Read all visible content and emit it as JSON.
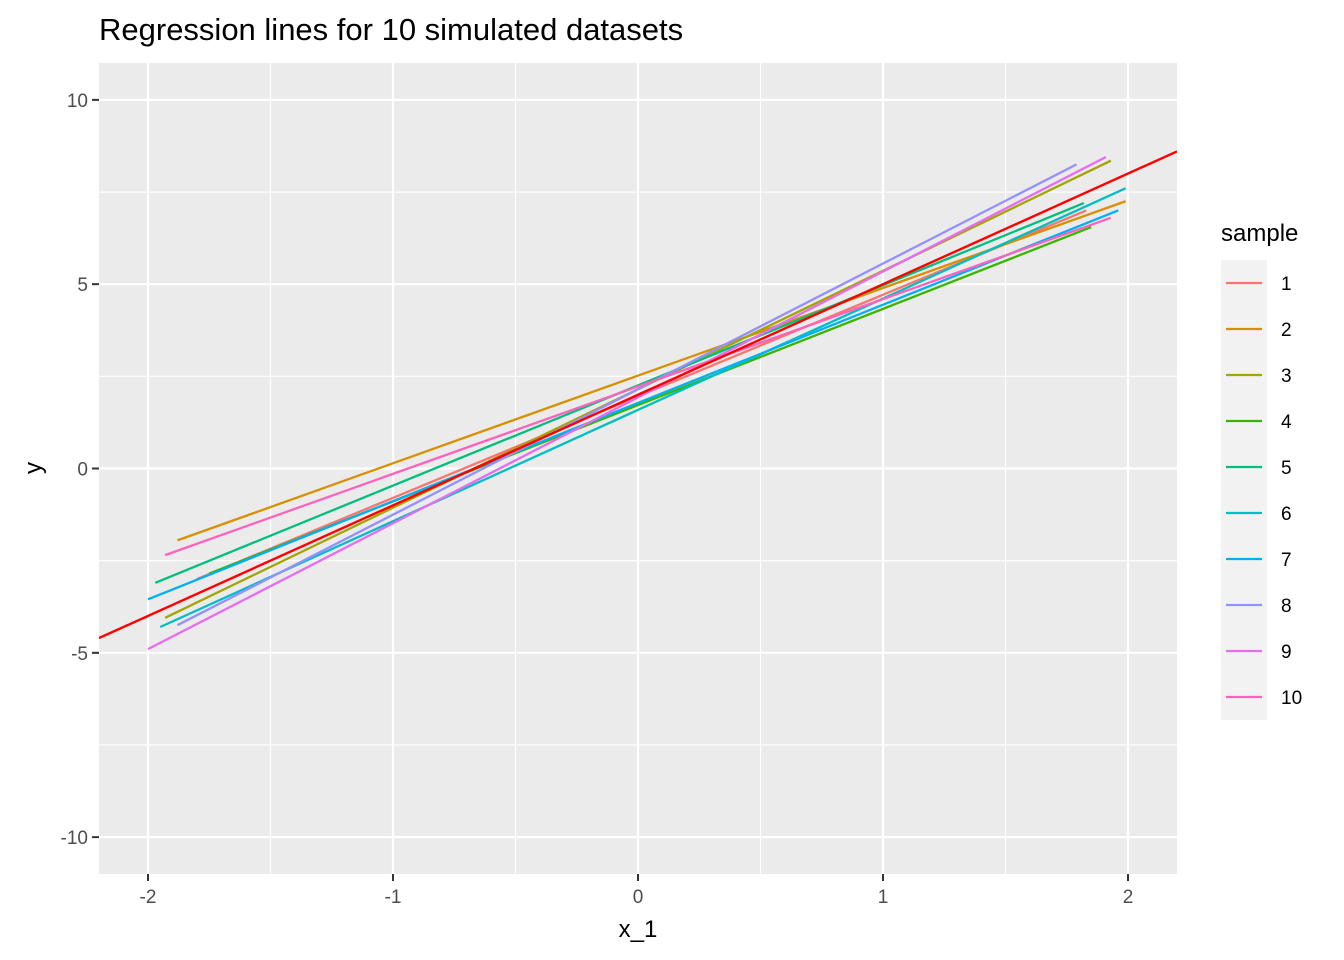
{
  "chart_data": {
    "type": "line",
    "title": "Regression lines for 10 simulated datasets",
    "xlabel": "x_1",
    "ylabel": "y",
    "xlim": [
      -2.2,
      2.2
    ],
    "ylim": [
      -11,
      11
    ],
    "x_ticks": [
      -2,
      -1,
      0,
      1,
      2
    ],
    "x_tick_labels": [
      "-2",
      "-1",
      "0",
      "1",
      "2"
    ],
    "y_ticks": [
      -10,
      -5,
      0,
      5,
      10
    ],
    "y_tick_labels": [
      "-10",
      "-5",
      "0",
      "5",
      "10"
    ],
    "grid": true,
    "background": "#ebebeb",
    "legend": {
      "title": "sample",
      "position": "right"
    },
    "true_line": {
      "color": "#ff0000",
      "x": [
        -2.2,
        2.2
      ],
      "y": [
        -4.6,
        8.6
      ]
    },
    "series": [
      {
        "name": "1",
        "color": "#f8766d",
        "x": [
          -1.8,
          1.83
        ],
        "y": [
          -3.0,
          7.0
        ]
      },
      {
        "name": "2",
        "color": "#d89000",
        "x": [
          -1.88,
          1.99
        ],
        "y": [
          -1.95,
          7.25
        ]
      },
      {
        "name": "3",
        "color": "#a3a500",
        "x": [
          -1.93,
          1.93
        ],
        "y": [
          -4.05,
          8.35
        ]
      },
      {
        "name": "4",
        "color": "#39b600",
        "x": [
          -1.75,
          1.85
        ],
        "y": [
          -2.85,
          6.55
        ]
      },
      {
        "name": "5",
        "color": "#00bf7d",
        "x": [
          -1.97,
          1.82
        ],
        "y": [
          -3.1,
          7.2
        ]
      },
      {
        "name": "6",
        "color": "#00bfc4",
        "x": [
          -1.95,
          1.99
        ],
        "y": [
          -4.3,
          7.6
        ]
      },
      {
        "name": "7",
        "color": "#00b0f6",
        "x": [
          -2.0,
          1.96
        ],
        "y": [
          -3.55,
          7.0
        ]
      },
      {
        "name": "8",
        "color": "#9590ff",
        "x": [
          -1.88,
          1.79
        ],
        "y": [
          -4.25,
          8.25
        ]
      },
      {
        "name": "9",
        "color": "#e76bf3",
        "x": [
          -2.0,
          1.91
        ],
        "y": [
          -4.9,
          8.45
        ]
      },
      {
        "name": "10",
        "color": "#ff62bc",
        "x": [
          -1.93,
          1.93
        ],
        "y": [
          -2.35,
          6.8
        ]
      }
    ]
  }
}
